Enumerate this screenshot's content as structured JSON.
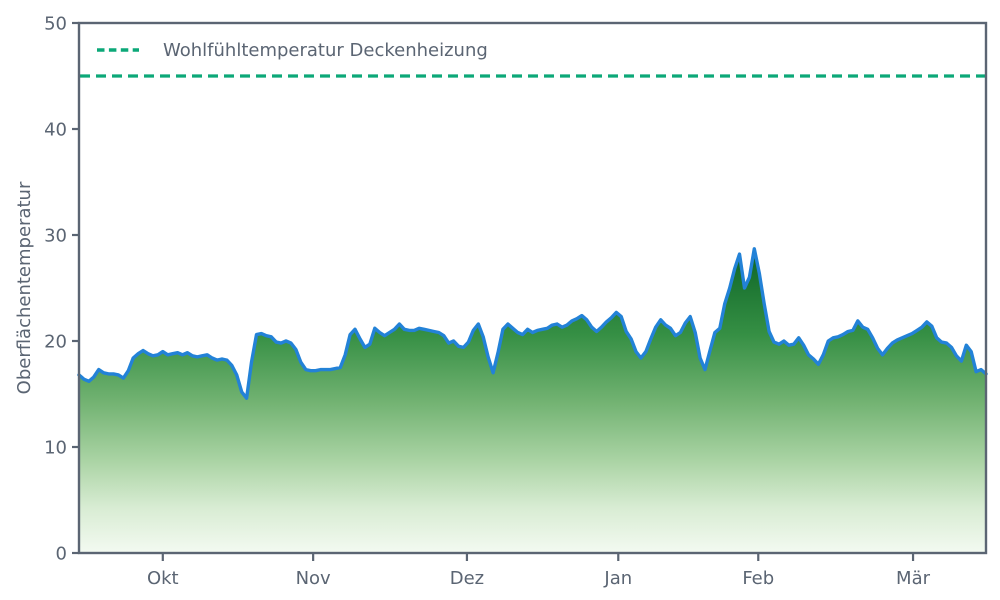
{
  "chart_data": {
    "type": "area",
    "title": "",
    "xlabel": "",
    "ylabel": "Oberflächentemperatur",
    "ylim": [
      0,
      50
    ],
    "yticks": [
      0,
      10,
      20,
      30,
      40,
      50
    ],
    "ytick_labels": [
      "0",
      "10",
      "20",
      "30",
      "40",
      "50"
    ],
    "x_tick_labels": [
      "Okt",
      "Nov",
      "Dez",
      "Jan",
      "Feb",
      "Mär"
    ],
    "x_tick_days": [
      17.0,
      47.5,
      78.7,
      109.4,
      137.8,
      169.2
    ],
    "x_range_days": [
      0,
      184
    ],
    "grid": false,
    "legend": {
      "position": "upper left",
      "entries": [
        "Wohlfühltemperatur Deckenheizung"
      ]
    },
    "reference_line": {
      "label": "Wohlfühltemperatur Deckenheizung",
      "value": 45,
      "style": "dashed"
    },
    "series": [
      {
        "name": "Oberflächentemperatur",
        "values": [
          16.8,
          16.4,
          16.2,
          16.6,
          17.3,
          17.0,
          16.9,
          16.9,
          16.8,
          16.5,
          17.2,
          18.4,
          18.8,
          19.1,
          18.8,
          18.6,
          18.7,
          19.0,
          18.7,
          18.8,
          18.9,
          18.7,
          18.9,
          18.6,
          18.5,
          18.6,
          18.7,
          18.4,
          18.2,
          18.3,
          18.2,
          17.7,
          16.8,
          15.2,
          14.6,
          18.0,
          20.6,
          20.7,
          20.5,
          20.4,
          19.9,
          19.8,
          20.0,
          19.8,
          19.2,
          18.0,
          17.3,
          17.2,
          17.2,
          17.3,
          17.3,
          17.3,
          17.4,
          17.5,
          18.7,
          20.6,
          21.1,
          20.2,
          19.4,
          19.7,
          21.2,
          20.8,
          20.5,
          20.8,
          21.1,
          21.6,
          21.1,
          21.0,
          21.0,
          21.2,
          21.1,
          21.0,
          20.9,
          20.8,
          20.5,
          19.8,
          20.0,
          19.5,
          19.4,
          19.9,
          21.0,
          21.6,
          20.4,
          18.5,
          17.0,
          18.9,
          21.1,
          21.6,
          21.2,
          20.8,
          20.6,
          21.1,
          20.8,
          21.0,
          21.1,
          21.2,
          21.5,
          21.6,
          21.3,
          21.5,
          21.9,
          22.1,
          22.4,
          22.0,
          21.3,
          20.9,
          21.3,
          21.8,
          22.2,
          22.7,
          22.3,
          20.9,
          20.2,
          19.0,
          18.4,
          19.0,
          20.2,
          21.3,
          22.0,
          21.5,
          21.2,
          20.5,
          20.8,
          21.7,
          22.3,
          20.8,
          18.4,
          17.3,
          19.1,
          20.8,
          21.2,
          23.5,
          25.0,
          26.8,
          28.2,
          25.0,
          26.0,
          28.7,
          26.4,
          23.5,
          20.9,
          19.9,
          19.7,
          20.0,
          19.6,
          19.7,
          20.3,
          19.6,
          18.7,
          18.3,
          17.8,
          18.7,
          20.0,
          20.3,
          20.4,
          20.6,
          20.9,
          21.0,
          21.9,
          21.3,
          21.1,
          20.3,
          19.3,
          18.7,
          19.3,
          19.8,
          20.1,
          20.3,
          20.5,
          20.7,
          21.0,
          21.3,
          21.8,
          21.4,
          20.3,
          19.9,
          19.8,
          19.4,
          18.6,
          18.1,
          19.6,
          19.0,
          17.1,
          17.3,
          16.9
        ]
      }
    ],
    "colors": {
      "line": "#2382d7",
      "reference": "#0ca878",
      "axis": "#5b6573",
      "text": "#5b6573",
      "area_top": "#0c6426",
      "area_mid": "#358f44",
      "area_light": "#71b271",
      "area_soft": "#abd4a5",
      "area_pale": "#d8ecd3",
      "area_bottom": "#f3faf1"
    }
  }
}
